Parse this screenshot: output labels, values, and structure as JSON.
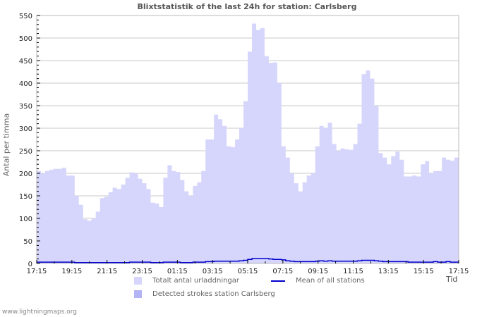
{
  "title": "Blixtstatistik of the last 24h for station: Carlsberg",
  "y_axis_label": "Antal per timma",
  "x_axis_unit": "Tid",
  "footer": "www.lightningmaps.org",
  "colors": {
    "total_fill": "#d6d6fc",
    "detected_fill": "#b3b3f5",
    "mean_line": "#0000cc",
    "grid": "#c8c8c8",
    "axis": "#bbbbbb"
  },
  "legend": [
    {
      "label": "Totalt antal urladdningar",
      "type": "area",
      "color": "#d6d6fc"
    },
    {
      "label": "Mean of all stations",
      "type": "line",
      "color": "#0000cc"
    },
    {
      "label": "Detected strokes station Carlsberg",
      "type": "area",
      "color": "#b3b3f5"
    }
  ],
  "chart_data": {
    "type": "area",
    "title": "Blixtstatistik of the last 24h for station: Carlsberg",
    "xlabel": "Tid",
    "ylabel": "Antal per timma",
    "ylim": [
      0,
      550
    ],
    "yticks": [
      0,
      50,
      100,
      150,
      200,
      250,
      300,
      350,
      400,
      450,
      500,
      550
    ],
    "xtick_labels": [
      "17:15",
      "19:15",
      "21:15",
      "23:15",
      "01:15",
      "03:15",
      "05:15",
      "07:15",
      "09:15",
      "11:15",
      "13:15",
      "15:15",
      "17:15"
    ],
    "grid": true,
    "legend_position": "bottom",
    "x_resolution_minutes": 15,
    "series": [
      {
        "name": "Totalt antal urladdningar",
        "values": [
          205,
          200,
          205,
          208,
          210,
          210,
          212,
          195,
          195,
          150,
          130,
          98,
          95,
          100,
          115,
          145,
          148,
          158,
          168,
          165,
          175,
          190,
          202,
          200,
          188,
          178,
          165,
          135,
          133,
          125,
          190,
          218,
          205,
          203,
          185,
          160,
          150,
          172,
          180,
          205,
          275,
          275,
          330,
          320,
          305,
          260,
          258,
          275,
          300,
          360,
          470,
          532,
          518,
          522,
          460,
          445,
          446,
          400,
          260,
          235,
          200,
          178,
          160,
          180,
          195,
          200,
          260,
          305,
          300,
          312,
          265,
          250,
          255,
          253,
          252,
          265,
          310,
          420,
          428,
          410,
          350,
          245,
          235,
          220,
          238,
          248,
          230,
          193,
          193,
          195,
          193,
          220,
          227,
          200,
          205,
          205,
          235,
          230,
          228,
          235
        ],
        "values_note": "approximate, read at ~15-minute intervals from 17:15 to 17:15"
      },
      {
        "name": "Mean of all stations",
        "values": [
          3,
          3,
          3,
          3,
          3,
          3,
          3,
          3,
          3,
          2,
          2,
          2,
          2,
          2,
          2,
          2,
          2,
          2,
          2,
          2,
          2,
          2,
          3,
          3,
          3,
          3,
          3,
          2,
          2,
          2,
          3,
          3,
          3,
          3,
          2,
          2,
          2,
          3,
          3,
          3,
          4,
          4,
          5,
          5,
          5,
          5,
          5,
          5,
          6,
          7,
          9,
          11,
          11,
          11,
          11,
          10,
          9,
          9,
          8,
          6,
          5,
          4,
          4,
          4,
          4,
          4,
          5,
          6,
          5,
          6,
          5,
          5,
          5,
          5,
          5,
          5,
          6,
          7,
          7,
          7,
          6,
          5,
          4,
          4,
          4,
          4,
          4,
          4,
          3,
          3,
          3,
          3,
          3,
          3,
          4,
          3,
          3,
          4,
          3,
          3
        ]
      },
      {
        "name": "Detected strokes station Carlsberg",
        "values": []
      }
    ]
  }
}
